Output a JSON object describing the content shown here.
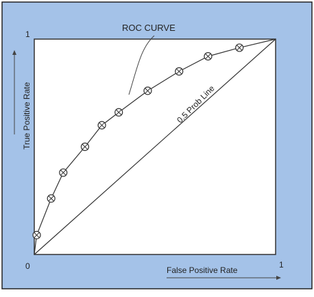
{
  "chart_data": {
    "type": "line",
    "title": "",
    "xlabel": "False Positive Rate",
    "ylabel": "True Positive Rate",
    "xlim": [
      0,
      1
    ],
    "ylim": [
      0,
      1
    ],
    "grid": false,
    "legend": "none",
    "tick_labels": {
      "origin": "0",
      "x_max": "1",
      "y_max": "1"
    },
    "annotations": {
      "roc_label": "ROC CURVE",
      "diagonal_label": "0.5 Prob Line"
    },
    "series": [
      {
        "style": "curve-with-circled-x-markers",
        "x": [
          0.0,
          0.01,
          0.07,
          0.12,
          0.21,
          0.28,
          0.35,
          0.47,
          0.6,
          0.72,
          0.85,
          1.0
        ],
        "y": [
          0.0,
          0.09,
          0.26,
          0.38,
          0.5,
          0.6,
          0.66,
          0.76,
          0.85,
          0.92,
          0.96,
          1.0
        ],
        "marked": [
          false,
          true,
          true,
          true,
          true,
          true,
          true,
          true,
          true,
          true,
          true,
          false
        ]
      },
      {
        "style": "straight-line",
        "x": [
          0,
          1
        ],
        "y": [
          0,
          1
        ]
      }
    ],
    "colors": {
      "background": "#a4c2e8",
      "plot_area": "#ffffff",
      "ink": "#333333"
    }
  }
}
